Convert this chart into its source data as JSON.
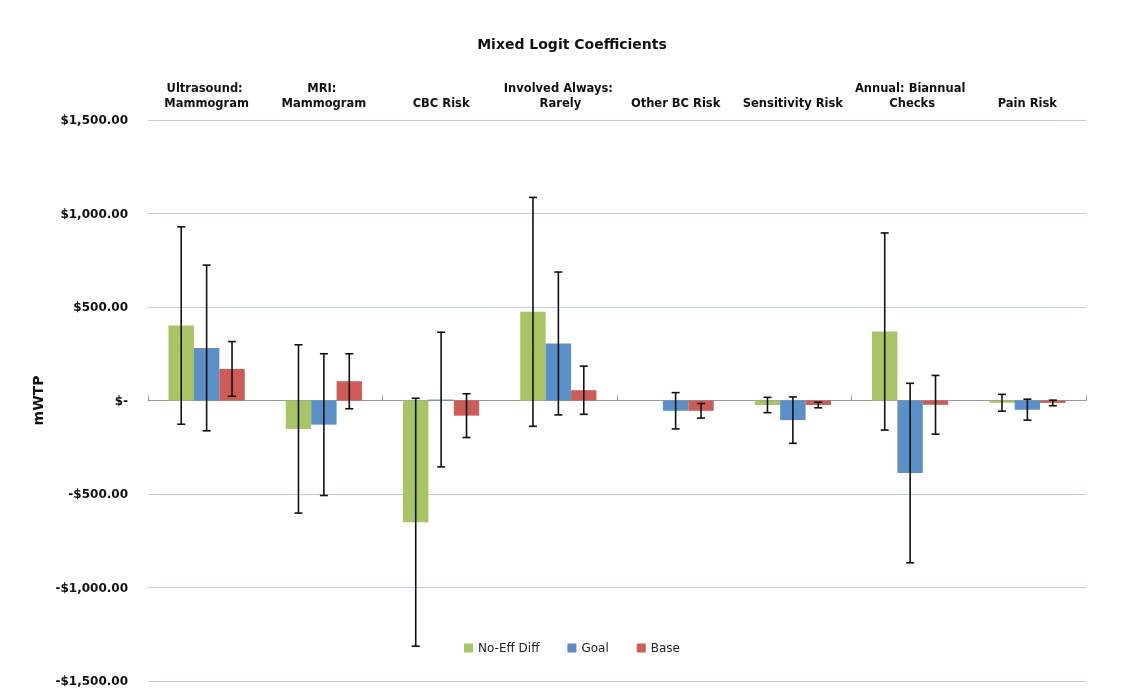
{
  "chart_data": {
    "type": "bar",
    "title": "Mixed Logit Coefficients",
    "ylabel": "mWTP",
    "categories": [
      "Ultrasound: Mammogram",
      "MRI: Mammogram",
      "CBC Risk",
      "Involved Always: Rarely",
      "Other BC Risk",
      "Sensitivity Risk",
      "Annual: Biannual Checks",
      "Pain Risk"
    ],
    "series": [
      {
        "name": "No-Eff Diff",
        "color": "#a9c464",
        "values": [
          401,
          -152,
          -651,
          474,
          null,
          -24,
          369,
          -12
        ],
        "errors": [
          528,
          450,
          663,
          612,
          null,
          41,
          527,
          45
        ]
      },
      {
        "name": "Goal",
        "color": "#5a8fc8",
        "values": [
          281,
          -129,
          5,
          305,
          -55,
          -105,
          -388,
          -49
        ],
        "errors": [
          443,
          379,
          360,
          382,
          97,
          124,
          480,
          56
        ]
      },
      {
        "name": "Base",
        "color": "#cd5c57",
        "values": [
          169,
          103,
          -81,
          55,
          -55,
          -24,
          -23,
          -13
        ],
        "errors": [
          146,
          147,
          117,
          129,
          39,
          15,
          157,
          15
        ]
      }
    ],
    "ylim": [
      -1500,
      1500
    ],
    "yticks": [
      {
        "value": -1500,
        "label": "-$1,500.00"
      },
      {
        "value": -1000,
        "label": "-$1,000.00"
      },
      {
        "value": -500,
        "label": "-$500.00"
      },
      {
        "value": 0,
        "label": "$-"
      },
      {
        "value": 500,
        "label": "$500.00"
      },
      {
        "value": 1000,
        "label": "$1,000.00"
      },
      {
        "value": 1500,
        "label": "$1,500.00"
      }
    ],
    "grid": "y",
    "legend": "bottom"
  }
}
